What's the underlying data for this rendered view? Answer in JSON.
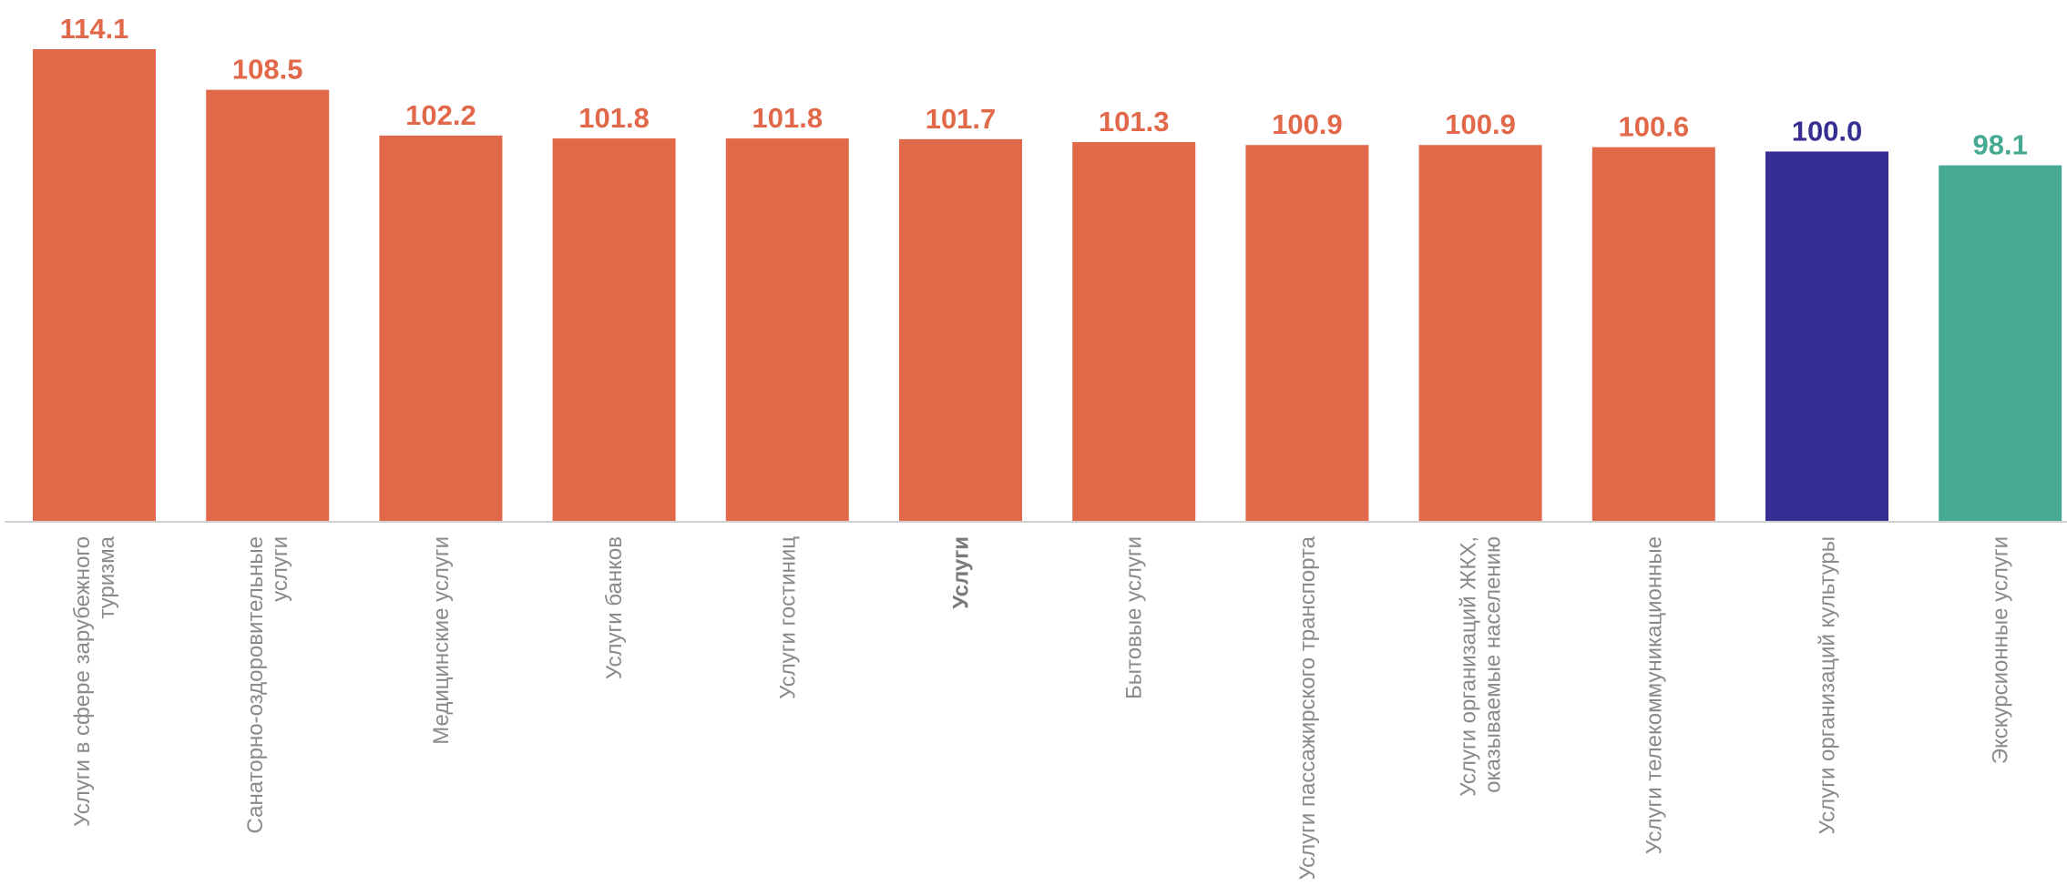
{
  "chart_data": {
    "type": "bar",
    "categories": [
      [
        "Услуги в сфере зарубежного",
        "туризма"
      ],
      [
        "Санаторно-оздоровительные",
        "услуги"
      ],
      [
        "Медицинские услуги"
      ],
      [
        "Услуги банков"
      ],
      [
        "Услуги гостиниц"
      ],
      [
        "Услуги"
      ],
      [
        "Бытовые услуги"
      ],
      [
        "Услуги пассажирского транспорта"
      ],
      [
        "Услуги организаций ЖКХ,",
        "оказываемые населению"
      ],
      [
        "Услуги телекоммуникационные"
      ],
      [
        "Услуги организаций культуры"
      ],
      [
        "Экскурсионные услуги"
      ]
    ],
    "values": [
      114.1,
      108.5,
      102.2,
      101.8,
      101.8,
      101.7,
      101.3,
      100.9,
      100.9,
      100.6,
      100.0,
      98.1
    ],
    "value_labels": [
      "114.1",
      "108.5",
      "102.2",
      "101.8",
      "101.8",
      "101.7",
      "101.3",
      "100.9",
      "100.9",
      "100.6",
      "100.0",
      "98.1"
    ],
    "bold_category_index": 5,
    "colors": [
      "#e2684a",
      "#e2684a",
      "#e2684a",
      "#e2684a",
      "#e2684a",
      "#e2684a",
      "#e2684a",
      "#e2684a",
      "#e2684a",
      "#e2684a",
      "#372e94",
      "#45a993"
    ],
    "axis_color": "#cfcfcf",
    "category_label_color": "#8a8a8a",
    "ylim": [
      49.0,
      114.1
    ],
    "title": "",
    "xlabel": "",
    "ylabel": "",
    "grid": false,
    "legend": "none"
  }
}
